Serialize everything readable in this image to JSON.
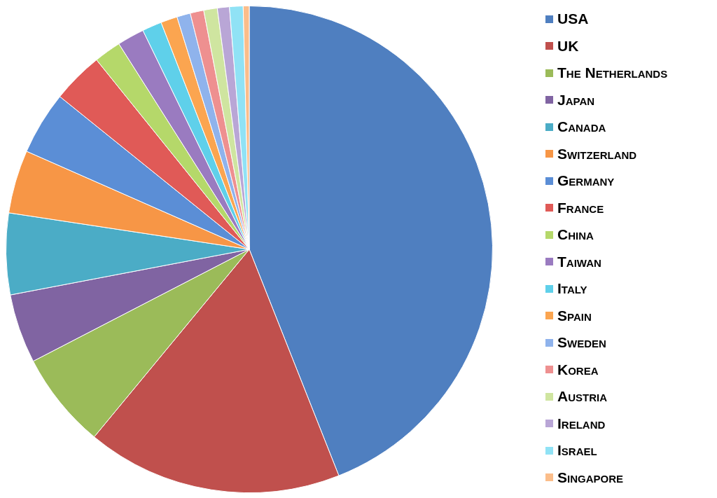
{
  "chart_data": {
    "type": "pie",
    "legend": "right",
    "categories": [
      "USA",
      "UK",
      "The Netherlands",
      "Japan",
      "Canada",
      "Switzerland",
      "Germany",
      "France",
      "China",
      "Taiwan",
      "Italy",
      "Spain",
      "Sweden",
      "Korea",
      "Austria",
      "Ireland",
      "Israel",
      "Singapore"
    ],
    "values": [
      44.0,
      17.0,
      6.4,
      4.6,
      5.4,
      4.2,
      4.2,
      3.4,
      1.8,
      1.8,
      1.3,
      1.1,
      0.9,
      0.9,
      0.9,
      0.8,
      0.9,
      0.4
    ],
    "colors": [
      "#4f7fc0",
      "#c0504d",
      "#9bbb59",
      "#8064a2",
      "#4bacc6",
      "#f79646",
      "#5b8ed6",
      "#e05a57",
      "#b5d86a",
      "#9a7bc0",
      "#5fd0ea",
      "#fba550",
      "#8fb3ec",
      "#ee9090",
      "#cfe5a0",
      "#b9a6d6",
      "#90e2f5",
      "#fbbd8a"
    ]
  }
}
